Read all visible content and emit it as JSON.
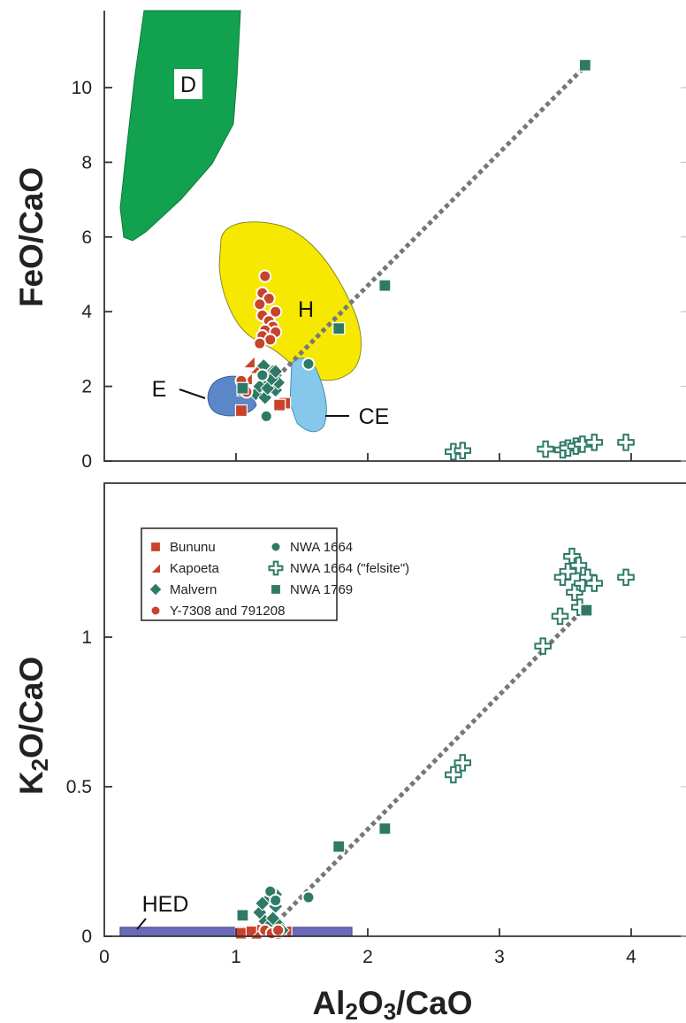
{
  "colors": {
    "red": "#c8432b",
    "teal": "#2e7a66",
    "green_field": "#12a14f",
    "yellow_field": "#f6e800",
    "blue_field": "#5b86c8",
    "lightblue_field": "#86c8ec",
    "purple_bar": "#6a6ab8",
    "trend_line": "#777777"
  },
  "chart_data": [
    {
      "type": "scatter",
      "panel": "top",
      "xlabel": "",
      "ylabel": "FeO/CaO",
      "xlim": [
        0,
        4.4
      ],
      "ylim": [
        0,
        12
      ],
      "y_ticks": [
        "0",
        "2",
        "4",
        "6",
        "8",
        "10"
      ],
      "region_labels": [
        "D",
        "H",
        "E",
        "CE"
      ],
      "series": [
        {
          "name": "Bununu",
          "marker": "square",
          "color": "red",
          "points": [
            [
              1.04,
              1.35
            ],
            [
              1.37,
              1.55
            ],
            [
              1.33,
              1.5
            ]
          ]
        },
        {
          "name": "Kapoeta",
          "marker": "triangle",
          "color": "red",
          "points": [
            [
              1.08,
              2.2
            ],
            [
              1.1,
              2.65
            ],
            [
              1.15,
              2.5
            ],
            [
              1.05,
              1.9
            ]
          ]
        },
        {
          "name": "Malvern",
          "marker": "diamond",
          "color": "teal",
          "points": [
            [
              1.15,
              1.8
            ],
            [
              1.2,
              2.1
            ],
            [
              1.25,
              2.3
            ],
            [
              1.3,
              1.9
            ],
            [
              1.22,
              1.7
            ],
            [
              1.28,
              2.4
            ],
            [
              1.18,
              2.0
            ],
            [
              1.32,
              2.1
            ],
            [
              1.24,
              1.95
            ],
            [
              1.27,
              2.2
            ],
            [
              1.21,
              2.55
            ],
            [
              1.3,
              2.4
            ]
          ]
        },
        {
          "name": "Y-7308 and 791208",
          "marker": "circle",
          "color": "red",
          "points": [
            [
              1.22,
              4.95
            ],
            [
              1.2,
              4.5
            ],
            [
              1.25,
              4.35
            ],
            [
              1.18,
              4.2
            ],
            [
              1.3,
              4.0
            ],
            [
              1.2,
              3.9
            ],
            [
              1.25,
              3.75
            ],
            [
              1.28,
              3.6
            ],
            [
              1.22,
              3.5
            ],
            [
              1.3,
              3.45
            ],
            [
              1.2,
              3.35
            ],
            [
              1.26,
              3.25
            ],
            [
              1.18,
              3.15
            ],
            [
              1.04,
              2.15
            ],
            [
              1.08,
              1.85
            ]
          ]
        },
        {
          "name": "NWA 1664",
          "marker": "circle",
          "color": "teal",
          "points": [
            [
              1.55,
              2.6
            ],
            [
              1.23,
              1.2
            ],
            [
              1.2,
              2.3
            ]
          ]
        },
        {
          "name": "NWA 1664 (\"felsite\")",
          "marker": "cross",
          "color": "teal",
          "points": [
            [
              2.65,
              0.25
            ],
            [
              2.72,
              0.28
            ],
            [
              3.35,
              0.32
            ],
            [
              3.48,
              0.3
            ],
            [
              3.52,
              0.35
            ],
            [
              3.58,
              0.4
            ],
            [
              3.63,
              0.45
            ],
            [
              3.72,
              0.5
            ],
            [
              3.96,
              0.5
            ]
          ]
        },
        {
          "name": "NWA 1769",
          "marker": "square",
          "color": "teal",
          "points": [
            [
              3.65,
              10.6
            ],
            [
              2.13,
              4.7
            ],
            [
              1.78,
              3.55
            ],
            [
              1.05,
              1.95
            ]
          ]
        }
      ],
      "trend_line": [
        [
          1.27,
          2.1
        ],
        [
          3.63,
          10.5
        ]
      ]
    },
    {
      "type": "scatter",
      "panel": "bottom",
      "xlabel": "Al2O3/CaO",
      "ylabel": "K2O/CaO",
      "xlim": [
        0,
        4.4
      ],
      "ylim": [
        0,
        1.43
      ],
      "x_ticks": [
        "0",
        "1",
        "2",
        "3",
        "4"
      ],
      "y_ticks": [
        "0",
        "0.5",
        "1"
      ],
      "region_labels": [
        "HED"
      ],
      "series": [
        {
          "name": "Bununu",
          "marker": "square",
          "color": "red",
          "points": [
            [
              1.04,
              0.01
            ],
            [
              1.12,
              0.015
            ],
            [
              1.2,
              0.02
            ],
            [
              1.3,
              0.01
            ],
            [
              1.38,
              0.015
            ]
          ]
        },
        {
          "name": "Kapoeta",
          "marker": "triangle",
          "color": "red",
          "points": [
            [
              1.15,
              0.01
            ],
            [
              1.25,
              0.02
            ],
            [
              1.34,
              0.015
            ]
          ]
        },
        {
          "name": "Malvern",
          "marker": "diamond",
          "color": "teal",
          "points": [
            [
              1.22,
              0.05
            ],
            [
              1.26,
              0.13
            ],
            [
              1.3,
              0.1
            ],
            [
              1.18,
              0.08
            ],
            [
              1.32,
              0.04
            ],
            [
              1.24,
              0.03
            ],
            [
              1.28,
              0.06
            ],
            [
              1.35,
              0.02
            ],
            [
              1.2,
              0.11
            ],
            [
              1.3,
              0.14
            ]
          ]
        },
        {
          "name": "Y-7308 and 791208",
          "marker": "circle",
          "color": "red",
          "points": [
            [
              1.22,
              0.02
            ],
            [
              1.27,
              0.01
            ],
            [
              1.32,
              0.02
            ]
          ]
        },
        {
          "name": "NWA 1664",
          "marker": "circle",
          "color": "teal",
          "points": [
            [
              1.55,
              0.13
            ],
            [
              1.26,
              0.15
            ],
            [
              1.3,
              0.12
            ]
          ]
        },
        {
          "name": "NWA 1664 (\"felsite\")",
          "marker": "cross",
          "color": "teal",
          "points": [
            [
              2.65,
              0.54
            ],
            [
              2.72,
              0.58
            ],
            [
              3.33,
              0.97
            ],
            [
              3.46,
              1.07
            ],
            [
              3.48,
              1.2
            ],
            [
              3.52,
              1.22
            ],
            [
              3.55,
              1.27
            ],
            [
              3.57,
              1.15
            ],
            [
              3.6,
              1.24
            ],
            [
              3.63,
              1.18
            ],
            [
              3.61,
              1.1
            ],
            [
              3.67,
              1.2
            ],
            [
              3.72,
              1.18
            ],
            [
              3.96,
              1.2
            ]
          ]
        },
        {
          "name": "NWA 1769",
          "marker": "square",
          "color": "teal",
          "points": [
            [
              3.66,
              1.09
            ],
            [
              2.13,
              0.36
            ],
            [
              1.78,
              0.3
            ],
            [
              1.05,
              0.07
            ]
          ]
        }
      ],
      "hed_bar": [
        0.12,
        1.88,
        0.03
      ],
      "trend_line": [
        [
          1.27,
          0.03
        ],
        [
          3.63,
          1.09
        ]
      ]
    }
  ],
  "legend": {
    "items": [
      {
        "label": "Bununu",
        "marker": "square",
        "color": "red"
      },
      {
        "label": "NWA 1664",
        "marker": "circle",
        "color": "teal"
      },
      {
        "label": "Kapoeta",
        "marker": "triangle",
        "color": "red"
      },
      {
        "label": "NWA 1664 (\"felsite\")",
        "marker": "cross",
        "color": "teal"
      },
      {
        "label": "Malvern",
        "marker": "diamond",
        "color": "teal"
      },
      {
        "label": "NWA 1769",
        "marker": "square",
        "color": "teal"
      },
      {
        "label": "Y-7308 and 791208",
        "marker": "circle",
        "color": "red"
      }
    ]
  },
  "axis_titles": {
    "top_y": {
      "main1": "FeO/CaO"
    },
    "bottom_y": {
      "pre": "K",
      "sub": "2",
      "post": "O/CaO"
    },
    "x": {
      "pre": "Al",
      "sub1": "2",
      "mid": "O",
      "sub2": "3",
      "post": "/CaO"
    }
  }
}
